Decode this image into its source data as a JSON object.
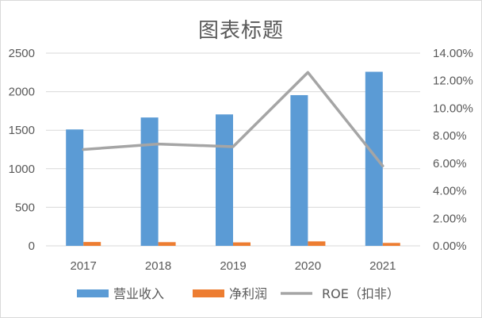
{
  "chart_data": {
    "type": "bar",
    "title": "图表标题",
    "categories": [
      "2017",
      "2018",
      "2019",
      "2020",
      "2021"
    ],
    "series": [
      {
        "name": "营业收入",
        "type": "bar",
        "axis": "left",
        "color": "#5b9bd5",
        "values": [
          1510,
          1665,
          1705,
          1955,
          2258
        ]
      },
      {
        "name": "净利润",
        "type": "bar",
        "axis": "left",
        "color": "#ed7d31",
        "values": [
          50,
          48,
          45,
          58,
          38
        ]
      },
      {
        "name": "ROE（扣非）",
        "type": "line",
        "axis": "right",
        "color": "#a5a5a5",
        "values": [
          0.07,
          0.074,
          0.072,
          0.126,
          0.058
        ]
      }
    ],
    "y_left": {
      "min": 0,
      "max": 2500,
      "ticks": [
        "0",
        "500",
        "1000",
        "1500",
        "2000",
        "2500"
      ]
    },
    "y_right": {
      "min": 0,
      "max": 0.14,
      "ticks": [
        "0.00%",
        "2.00%",
        "4.00%",
        "6.00%",
        "8.00%",
        "10.00%",
        "12.00%",
        "14.00%"
      ]
    },
    "grid": true,
    "legend_position": "bottom"
  }
}
